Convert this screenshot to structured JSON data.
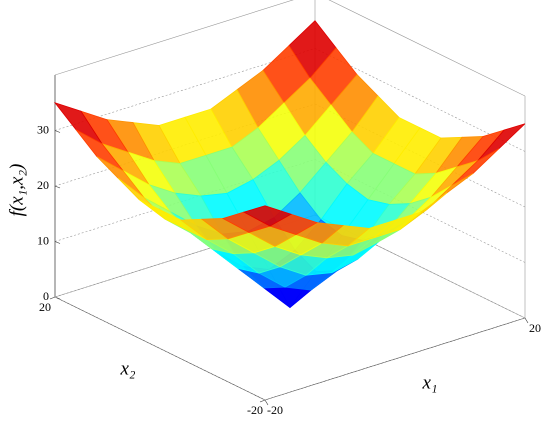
{
  "chart_data": {
    "type": "surface",
    "xlabel": "x₁",
    "ylabel": "x₂",
    "zlabel": "f(x₁,x₂)",
    "x": [
      -20,
      -16,
      -12,
      -8,
      -4,
      0,
      4,
      8,
      12,
      16,
      20
    ],
    "y": [
      -20,
      -16,
      -12,
      -8,
      -4,
      0,
      4,
      8,
      12,
      16,
      20
    ],
    "z": [
      [
        35,
        32,
        29,
        27,
        25,
        25,
        25,
        27,
        29,
        32,
        35
      ],
      [
        32,
        28,
        25,
        22,
        20,
        20,
        20,
        22,
        25,
        28,
        32
      ],
      [
        29,
        25,
        21,
        18,
        16,
        15,
        16,
        18,
        21,
        25,
        29
      ],
      [
        27,
        22,
        18,
        14,
        11,
        10,
        11,
        14,
        18,
        22,
        27
      ],
      [
        25,
        20,
        16,
        11,
        7,
        5,
        7,
        11,
        16,
        20,
        25
      ],
      [
        25,
        20,
        15,
        10,
        5,
        0,
        5,
        10,
        15,
        20,
        25
      ],
      [
        25,
        20,
        16,
        11,
        7,
        5,
        7,
        11,
        16,
        20,
        25
      ],
      [
        27,
        22,
        18,
        14,
        11,
        10,
        11,
        14,
        18,
        22,
        27
      ],
      [
        29,
        25,
        21,
        18,
        16,
        15,
        16,
        18,
        21,
        25,
        29
      ],
      [
        32,
        28,
        25,
        22,
        20,
        20,
        20,
        22,
        25,
        28,
        32
      ],
      [
        35,
        32,
        29,
        27,
        25,
        25,
        25,
        27,
        29,
        32,
        35
      ]
    ],
    "xlim": [
      -20,
      20
    ],
    "xticks": [
      -20,
      20
    ],
    "ylim": [
      -20,
      20
    ],
    "yticks": [
      20,
      -20
    ],
    "zlim": [
      0,
      40
    ],
    "zticks": [
      0,
      10,
      20,
      30
    ],
    "colormap": "jet",
    "grid": true
  }
}
